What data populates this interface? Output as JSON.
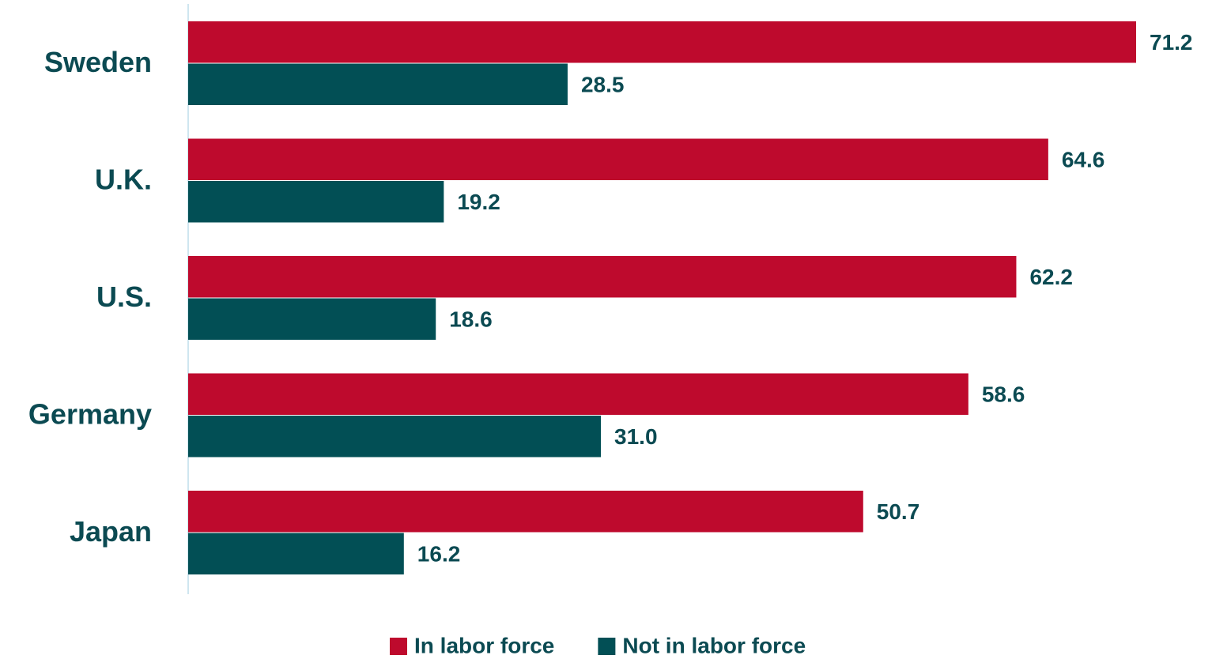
{
  "chart_data": {
    "type": "bar",
    "orientation": "horizontal",
    "categories": [
      "Sweden",
      "U.K.",
      "U.S.",
      "Germany",
      "Japan"
    ],
    "series": [
      {
        "name": "In labor force",
        "color": "#be0a2d",
        "values": [
          71.2,
          64.6,
          62.2,
          58.6,
          50.7
        ],
        "value_labels": [
          "71.2",
          "64.6",
          "62.2",
          "58.6",
          "50.7"
        ]
      },
      {
        "name": "Not in labor force",
        "color": "#024f55",
        "values": [
          28.5,
          19.2,
          18.6,
          31.0,
          16.2
        ],
        "value_labels": [
          "28.5",
          "19.2",
          "18.6",
          "31.0",
          "16.2"
        ]
      }
    ],
    "legend": "bottom"
  }
}
